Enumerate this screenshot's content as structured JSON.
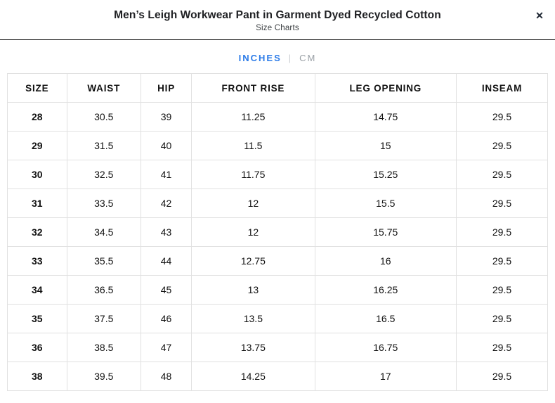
{
  "modal": {
    "title": "Men’s Leigh Workwear Pant in Garment Dyed Recycled Cotton",
    "subtitle": "Size Charts",
    "close_glyph": "✕"
  },
  "unit_toggle": {
    "active_label": "INCHES",
    "separator": "|",
    "inactive_label": "CM",
    "active_color": "#2d7ce8",
    "inactive_color": "#9aa0a6"
  },
  "chart_data": {
    "type": "table",
    "title": "Men’s Leigh Workwear Pant size chart (inches)",
    "columns": [
      "SIZE",
      "WAIST",
      "HIP",
      "FRONT RISE",
      "LEG OPENING",
      "INSEAM"
    ],
    "rows": [
      [
        "28",
        "30.5",
        "39",
        "11.25",
        "14.75",
        "29.5"
      ],
      [
        "29",
        "31.5",
        "40",
        "11.5",
        "15",
        "29.5"
      ],
      [
        "30",
        "32.5",
        "41",
        "11.75",
        "15.25",
        "29.5"
      ],
      [
        "31",
        "33.5",
        "42",
        "12",
        "15.5",
        "29.5"
      ],
      [
        "32",
        "34.5",
        "43",
        "12",
        "15.75",
        "29.5"
      ],
      [
        "33",
        "35.5",
        "44",
        "12.75",
        "16",
        "29.5"
      ],
      [
        "34",
        "36.5",
        "45",
        "13",
        "16.25",
        "29.5"
      ],
      [
        "35",
        "37.5",
        "46",
        "13.5",
        "16.5",
        "29.5"
      ],
      [
        "36",
        "38.5",
        "47",
        "13.75",
        "16.75",
        "29.5"
      ],
      [
        "38",
        "39.5",
        "48",
        "14.25",
        "17",
        "29.5"
      ]
    ]
  }
}
